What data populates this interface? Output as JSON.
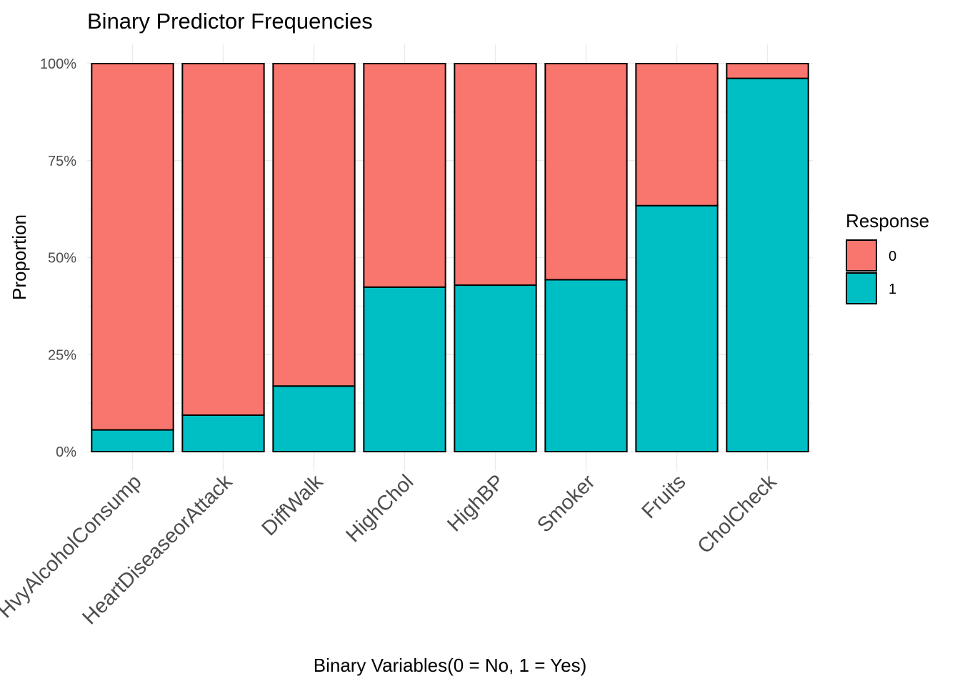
{
  "chart_data": {
    "type": "bar",
    "stacked": true,
    "title": "Binary Predictor Frequencies",
    "xlabel": "Binary Variables(0 = No, 1 = Yes)",
    "ylabel": "Proportion",
    "ylim": [
      0,
      1
    ],
    "y_ticks": [
      "0%",
      "25%",
      "50%",
      "75%",
      "100%"
    ],
    "grid": true,
    "legend": {
      "title": "Response",
      "position": "right"
    },
    "categories": [
      "HvyAlcoholConsump",
      "HeartDiseaseorAttack",
      "DiffWalk",
      "HighChol",
      "HighBP",
      "Smoker",
      "Fruits",
      "CholCheck"
    ],
    "series": [
      {
        "name": "0",
        "color": "#F8766D",
        "values": [
          0.944,
          0.906,
          0.831,
          0.576,
          0.571,
          0.557,
          0.366,
          0.038
        ]
      },
      {
        "name": "1",
        "color": "#00BFC4",
        "values": [
          0.056,
          0.094,
          0.169,
          0.424,
          0.429,
          0.443,
          0.634,
          0.962
        ]
      }
    ]
  }
}
